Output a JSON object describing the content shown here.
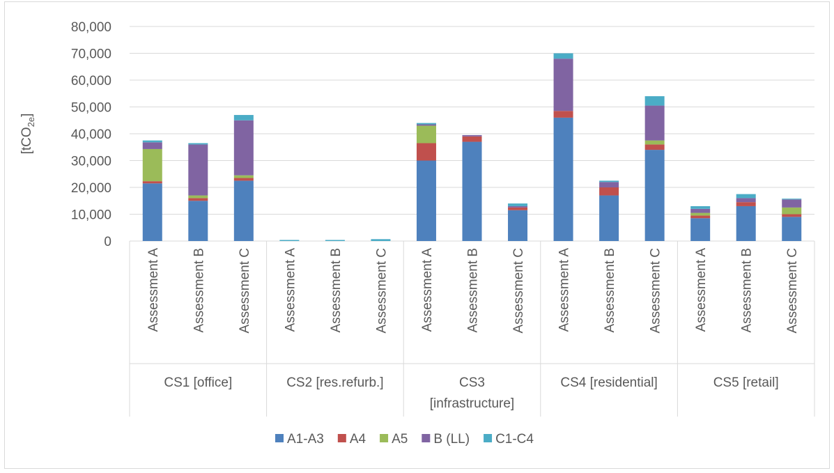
{
  "chart_data": {
    "type": "bar",
    "stacked": true,
    "title": "",
    "ylabel_parts": [
      "[tCO",
      "2e",
      "]"
    ],
    "ylim": [
      0,
      80000
    ],
    "yticks": [
      0,
      10000,
      20000,
      30000,
      40000,
      50000,
      60000,
      70000,
      80000
    ],
    "ytick_labels": [
      "0",
      "10,000",
      "20,000",
      "30,000",
      "40,000",
      "50,000",
      "60,000",
      "70,000",
      "80,000"
    ],
    "grid": true,
    "legend_position": "bottom",
    "groups": [
      {
        "label_lines": [
          "CS1 [office]"
        ],
        "categories": [
          "Assessment A",
          "Assessment B",
          "Assessment C"
        ]
      },
      {
        "label_lines": [
          "CS2 [res.refurb.]"
        ],
        "categories": [
          "Assessment A",
          "Assessment B",
          "Assessment C"
        ]
      },
      {
        "label_lines": [
          "CS3",
          "[infrastructure]"
        ],
        "categories": [
          "Assessment A",
          "Assessment B",
          "Assessment C"
        ]
      },
      {
        "label_lines": [
          "CS4 [residential]"
        ],
        "categories": [
          "Assessment A",
          "Assessment B",
          "Assessment C"
        ]
      },
      {
        "label_lines": [
          "CS5 [retail]"
        ],
        "categories": [
          "Assessment A",
          "Assessment B",
          "Assessment C"
        ]
      }
    ],
    "series": [
      {
        "name": "A1-A3",
        "color": "#4e81bd",
        "values": [
          21500,
          15000,
          22500,
          0,
          0,
          0,
          30000,
          37000,
          11500,
          46000,
          17000,
          34000,
          8500,
          13000,
          9000
        ]
      },
      {
        "name": "A4",
        "color": "#c0504d",
        "values": [
          800,
          1000,
          1000,
          0,
          0,
          0,
          6500,
          2000,
          1000,
          2500,
          3000,
          2000,
          1000,
          1500,
          1000
        ]
      },
      {
        "name": "A5",
        "color": "#9bbb59",
        "values": [
          12000,
          1000,
          1000,
          0,
          0,
          0,
          6500,
          0,
          0,
          0,
          0,
          1500,
          1000,
          0,
          2500
        ]
      },
      {
        "name": "B (LL)",
        "color": "#8064a2",
        "values": [
          2500,
          19000,
          20500,
          0,
          0,
          0,
          500,
          500,
          500,
          19500,
          2000,
          13000,
          1500,
          1500,
          3000
        ]
      },
      {
        "name": "C1-C4",
        "color": "#4bacc6",
        "values": [
          700,
          500,
          2000,
          400,
          400,
          700,
          500,
          0,
          1000,
          2000,
          500,
          3500,
          1000,
          1500,
          300
        ]
      }
    ]
  }
}
